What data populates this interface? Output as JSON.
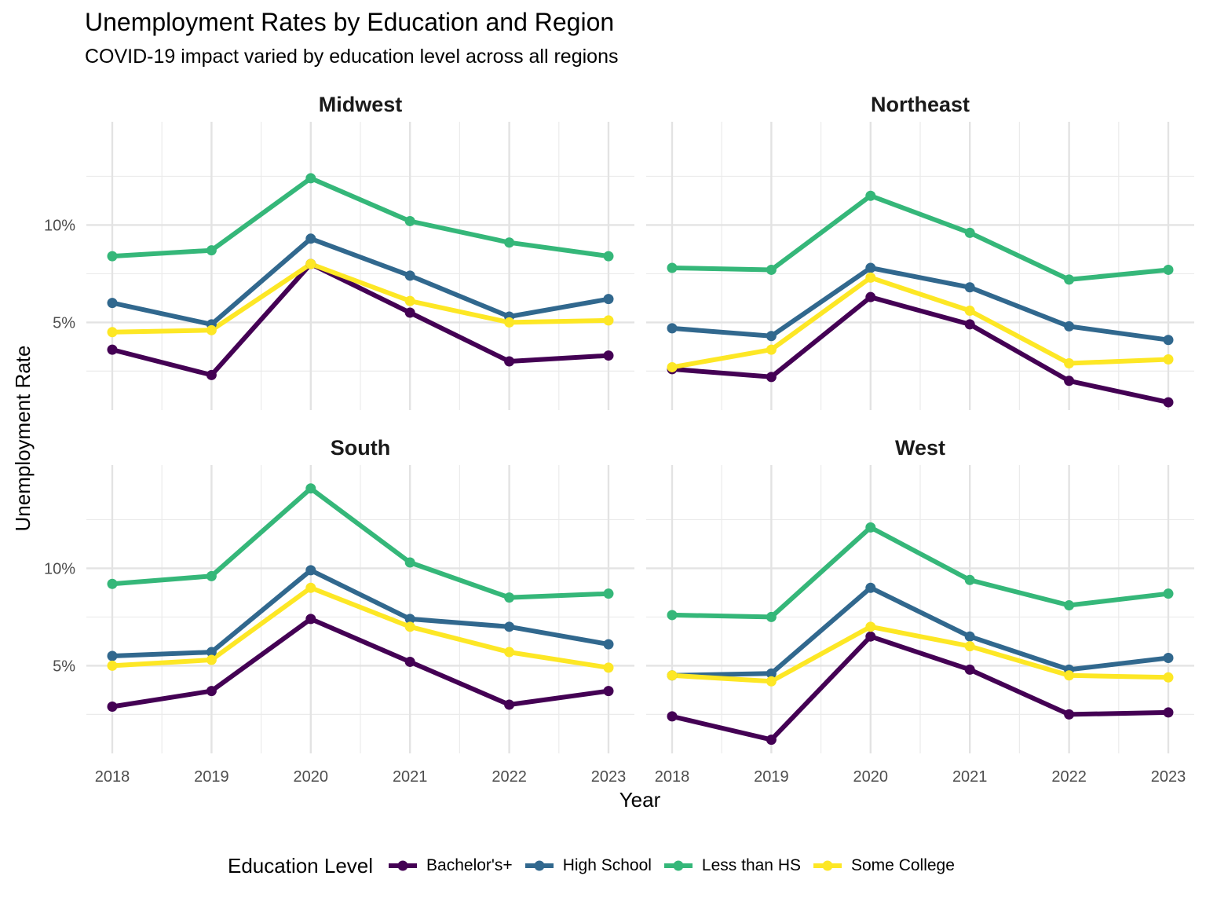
{
  "chart_data": {
    "type": "line",
    "title": "Unemployment Rates by Education and Region",
    "subtitle": "COVID-19 impact varied by education level across all regions",
    "xlabel": "Year",
    "ylabel": "Unemployment Rate",
    "x": [
      "2018",
      "2019",
      "2020",
      "2021",
      "2022",
      "2023"
    ],
    "ylim": [
      0.5,
      15.3
    ],
    "y_ticks": [
      5,
      10
    ],
    "y_tick_labels": [
      "5%",
      "10%"
    ],
    "grid": true,
    "legend": {
      "title": "Education Level",
      "position": "bottom",
      "entries": [
        "Bachelor's+",
        "High School",
        "Less than HS",
        "Some College"
      ]
    },
    "colors": {
      "Bachelor's+": "#440154",
      "High School": "#31688E",
      "Less than HS": "#35B779",
      "Some College": "#FDE725"
    },
    "panels": [
      {
        "name": "Midwest",
        "series": [
          {
            "name": "Bachelor's+",
            "values": [
              3.6,
              2.3,
              8.0,
              5.5,
              3.0,
              3.3
            ]
          },
          {
            "name": "High School",
            "values": [
              6.0,
              4.9,
              9.3,
              7.4,
              5.3,
              6.2
            ]
          },
          {
            "name": "Less than HS",
            "values": [
              8.4,
              8.7,
              12.4,
              10.2,
              9.1,
              8.4
            ]
          },
          {
            "name": "Some College",
            "values": [
              4.5,
              4.6,
              8.0,
              6.1,
              5.0,
              5.1
            ]
          }
        ]
      },
      {
        "name": "Northeast",
        "series": [
          {
            "name": "Bachelor's+",
            "values": [
              2.6,
              2.2,
              6.3,
              4.9,
              2.0,
              0.9
            ]
          },
          {
            "name": "High School",
            "values": [
              4.7,
              4.3,
              7.8,
              6.8,
              4.8,
              4.1
            ]
          },
          {
            "name": "Less than HS",
            "values": [
              7.8,
              7.7,
              11.5,
              9.6,
              7.2,
              7.7
            ]
          },
          {
            "name": "Some College",
            "values": [
              2.7,
              3.6,
              7.3,
              5.6,
              2.9,
              3.1
            ]
          }
        ]
      },
      {
        "name": "South",
        "series": [
          {
            "name": "Bachelor's+",
            "values": [
              2.9,
              3.7,
              7.4,
              5.2,
              3.0,
              3.7
            ]
          },
          {
            "name": "High School",
            "values": [
              5.5,
              5.7,
              9.9,
              7.4,
              7.0,
              6.1
            ]
          },
          {
            "name": "Less than HS",
            "values": [
              9.2,
              9.6,
              14.1,
              10.3,
              8.5,
              8.7
            ]
          },
          {
            "name": "Some College",
            "values": [
              5.0,
              5.3,
              9.0,
              7.0,
              5.7,
              4.9
            ]
          }
        ]
      },
      {
        "name": "West",
        "series": [
          {
            "name": "Bachelor's+",
            "values": [
              2.4,
              1.2,
              6.5,
              4.8,
              2.5,
              2.6
            ]
          },
          {
            "name": "High School",
            "values": [
              4.5,
              4.6,
              9.0,
              6.5,
              4.8,
              5.4
            ]
          },
          {
            "name": "Less than HS",
            "values": [
              7.6,
              7.5,
              12.1,
              9.4,
              8.1,
              8.7
            ]
          },
          {
            "name": "Some College",
            "values": [
              4.5,
              4.2,
              7.0,
              6.0,
              4.5,
              4.4
            ]
          }
        ]
      }
    ]
  }
}
